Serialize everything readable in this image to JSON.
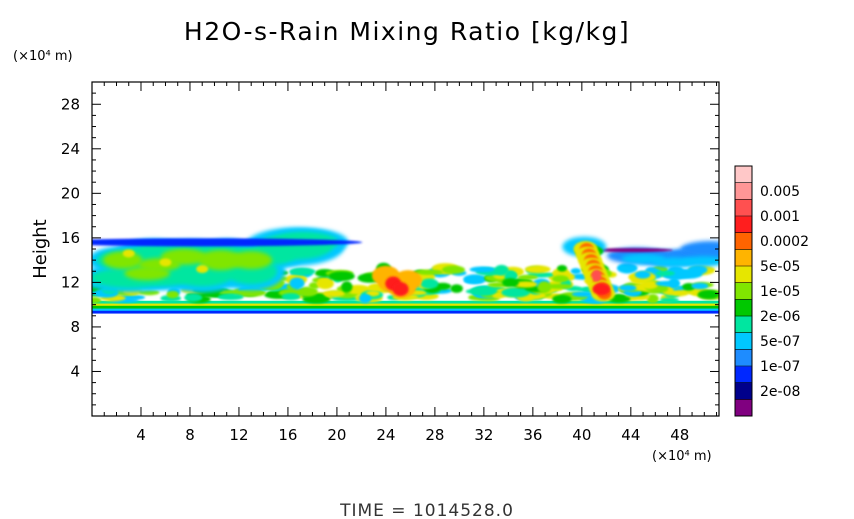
{
  "chart_data": {
    "type": "heatmap",
    "title": "H2O-s-Rain Mixing Ratio [kg/kg]",
    "ylabel": "Height",
    "xlabel": "",
    "x_unit": "(×10⁴ m)",
    "y_unit": "(×10⁴ m)",
    "xlim": [
      0,
      51.2
    ],
    "ylim": [
      0,
      30
    ],
    "x_ticks": [
      "4",
      "8",
      "12",
      "16",
      "20",
      "24",
      "28",
      "32",
      "36",
      "40",
      "44",
      "48"
    ],
    "y_ticks": [
      "4",
      "8",
      "12",
      "16",
      "20",
      "24",
      "28"
    ],
    "colorbar": {
      "colors": [
        "#800080",
        "#00008b",
        "#0028ff",
        "#1e8cff",
        "#00c8ff",
        "#00e6a0",
        "#00c800",
        "#80e600",
        "#e6e600",
        "#ffb400",
        "#ff6400",
        "#ff1e1e",
        "#ff5050",
        "#ff9696",
        "#ffc8c8"
      ],
      "labels": [
        "2e-08",
        "1e-07",
        "5e-07",
        "2e-06",
        "1e-05",
        "5e-05",
        "0.0002",
        "0.001",
        "0.005"
      ]
    },
    "features": [
      {
        "name": "cloud-layer",
        "x": [
          0,
          51.2
        ],
        "y": [
          9.3,
          10.3
        ]
      },
      {
        "name": "upper-band-west",
        "x": [
          0,
          18
        ],
        "y": [
          12,
          16
        ]
      },
      {
        "name": "mid-band",
        "x": [
          13,
          51
        ],
        "y": [
          10.5,
          13.3
        ]
      },
      {
        "name": "convective-core-24",
        "x": [
          23,
          26.5
        ],
        "y": [
          10.5,
          13.2
        ]
      },
      {
        "name": "convective-core-41",
        "x": [
          39.5,
          42.5
        ],
        "y": [
          10.5,
          16
        ]
      },
      {
        "name": "upper-band-east",
        "x": [
          43,
          51.2
        ],
        "y": [
          12.5,
          15.8
        ]
      }
    ]
  },
  "footer": {
    "time_label": "TIME  =  1014528.0"
  }
}
